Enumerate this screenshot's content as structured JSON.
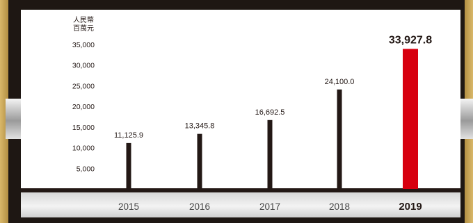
{
  "chart_data": {
    "type": "bar",
    "unit_label_line1": "人民幣",
    "unit_label_line2": "百萬元",
    "categories": [
      "2015",
      "2016",
      "2017",
      "2018",
      "2019"
    ],
    "values": [
      11125.9,
      13345.8,
      16692.5,
      24100.0,
      33927.8
    ],
    "value_labels": [
      "11,125.9",
      "13,345.8",
      "16,692.5",
      "24,100.0",
      "33,927.8"
    ],
    "yticks": [
      5000,
      10000,
      15000,
      20000,
      25000,
      30000,
      35000
    ],
    "ytick_labels": [
      "5,000",
      "10,000",
      "15,000",
      "20,000",
      "25,000",
      "30,000",
      "35,000"
    ],
    "ylim": [
      0,
      35000
    ],
    "highlight_index": 4,
    "colors": {
      "bar": "#231815",
      "highlight": "#d7000f",
      "text": "#231815"
    }
  }
}
